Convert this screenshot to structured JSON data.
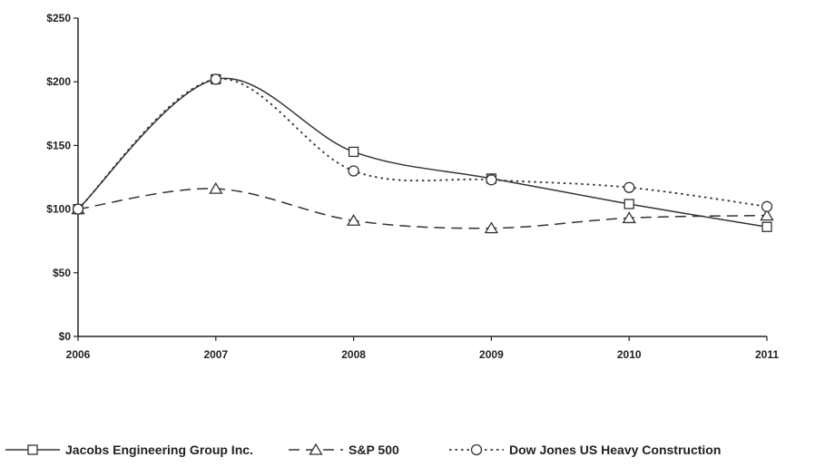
{
  "chart_data": {
    "type": "line",
    "title": "",
    "xlabel": "",
    "ylabel": "",
    "x": [
      "2006",
      "2007",
      "2008",
      "2009",
      "2010",
      "2011"
    ],
    "ylim": [
      0,
      250
    ],
    "y_ticks": [
      0,
      50,
      100,
      150,
      200,
      250
    ],
    "y_tick_labels": [
      "$0",
      "$50",
      "$100",
      "$150",
      "$200",
      "$250"
    ],
    "grid": false,
    "legend_position": "bottom",
    "series": [
      {
        "name": "Jacobs Engineering Group Inc.",
        "values": [
          100,
          202,
          145,
          124,
          104,
          86
        ],
        "marker": "square",
        "dash": "solid",
        "color": "#333333"
      },
      {
        "name": "S&P 500",
        "values": [
          100,
          116,
          91,
          85,
          93,
          95
        ],
        "marker": "triangle",
        "dash": "dashed",
        "color": "#333333"
      },
      {
        "name": "Dow Jones US Heavy Construction",
        "values": [
          100,
          202,
          130,
          123,
          117,
          102
        ],
        "marker": "circle",
        "dash": "dotted",
        "color": "#333333"
      }
    ]
  }
}
